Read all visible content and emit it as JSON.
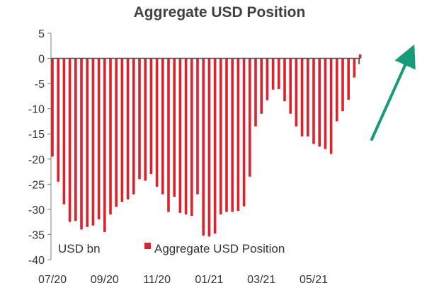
{
  "chart_data": {
    "type": "bar",
    "title": "Aggregate USD Position",
    "unit_label": "USD bn",
    "ylim": [
      -40,
      5
    ],
    "yticks": [
      5,
      0,
      -5,
      -10,
      -15,
      -20,
      -25,
      -30,
      -35,
      -40
    ],
    "x_tick_labels": [
      "07/20",
      "09/20",
      "11/20",
      "01/21",
      "03/21",
      "05/21"
    ],
    "x_tick_indices": [
      0,
      9,
      18,
      27,
      36,
      45
    ],
    "grid": false,
    "legend_position": "bottom-inside",
    "series": [
      {
        "name": "Aggregate USD Position",
        "color": "#e0202a",
        "values": [
          -19.5,
          -24.5,
          -29,
          -32.5,
          -32.3,
          -34,
          -33.5,
          -33.2,
          -32,
          -34.5,
          -31,
          -29.5,
          -28.5,
          -28,
          -27,
          -24,
          -24.3,
          -23,
          -25.5,
          -27,
          -30.5,
          -27.5,
          -30.7,
          -31,
          -31.3,
          -27,
          -35.2,
          -35.4,
          -34.8,
          -31,
          -30.5,
          -30.5,
          -30.3,
          -29.4,
          -23.5,
          -13.5,
          -11,
          -8.3,
          -6.2,
          -6.1,
          -8.5,
          -11,
          -13.5,
          -15.5,
          -15.5,
          -17,
          -17.5,
          -18,
          -19,
          -12.5,
          -10.5,
          -8.2,
          -3.8,
          0.8
        ]
      }
    ],
    "annotation_arrow_color": "#169c78"
  }
}
